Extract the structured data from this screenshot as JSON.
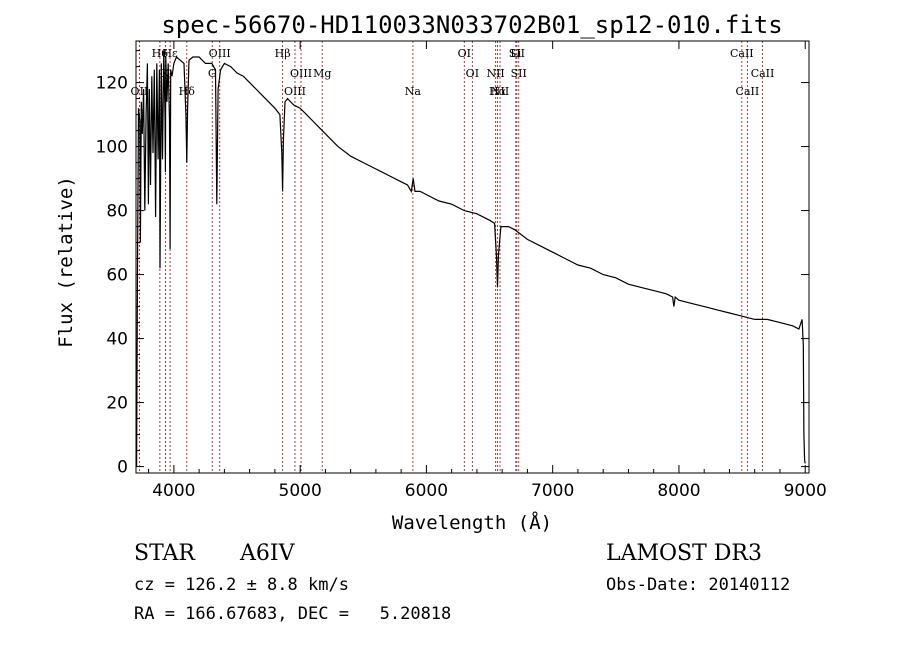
{
  "chart_data": {
    "type": "line",
    "title": "spec-56670-HD110033N033702B01_sp12-010.fits",
    "xlabel": "Wavelength (Å)",
    "ylabel": "Flux (relative)",
    "xlim": [
      3700,
      9030
    ],
    "ylim": [
      -2,
      133
    ],
    "xticks": [
      4000,
      5000,
      6000,
      7000,
      8000,
      9000
    ],
    "yticks": [
      0,
      20,
      40,
      60,
      80,
      100,
      120
    ],
    "xtick_labels": [
      "4000",
      "5000",
      "6000",
      "7000",
      "8000",
      "9000"
    ],
    "ytick_labels": [
      "0",
      "20",
      "40",
      "60",
      "80",
      "100",
      "120"
    ],
    "series": [
      {
        "name": "spectrum",
        "x": [
          3700,
          3705,
          3712,
          3720,
          3730,
          3735,
          3742,
          3750,
          3760,
          3770,
          3780,
          3790,
          3798,
          3805,
          3815,
          3825,
          3835,
          3845,
          3855,
          3865,
          3875,
          3885,
          3890,
          3900,
          3910,
          3920,
          3930,
          3933,
          3936,
          3945,
          3955,
          3965,
          3970,
          3975,
          3985,
          4000,
          4020,
          4050,
          4080,
          4095,
          4102,
          4109,
          4120,
          4150,
          4200,
          4250,
          4300,
          4330,
          4340,
          4350,
          4370,
          4400,
          4450,
          4500,
          4550,
          4600,
          4650,
          4700,
          4750,
          4800,
          4840,
          4855,
          4861,
          4867,
          4880,
          4900,
          4950,
          5000,
          5050,
          5100,
          5150,
          5200,
          5300,
          5400,
          5500,
          5600,
          5700,
          5800,
          5850,
          5880,
          5895,
          5910,
          5950,
          6000,
          6100,
          6200,
          6300,
          6400,
          6500,
          6540,
          6556,
          6563,
          6570,
          6590,
          6650,
          6700,
          6800,
          6900,
          7000,
          7100,
          7200,
          7300,
          7400,
          7500,
          7600,
          7700,
          7800,
          7900,
          7950,
          7960,
          7970,
          8000,
          8100,
          8200,
          8300,
          8400,
          8500,
          8600,
          8700,
          8800,
          8900,
          8950,
          8975,
          8985,
          8990,
          8995,
          9000
        ],
        "y": [
          3,
          0,
          62,
          112,
          108,
          70,
          114,
          104,
          118,
          80,
          110,
          126,
          82,
          118,
          88,
          122,
          98,
          124,
          78,
          126,
          96,
          124,
          62,
          126,
          96,
          130,
          110,
          92,
          128,
          114,
          126,
          108,
          68,
          124,
          122,
          126,
          128,
          127,
          126,
          110,
          95,
          112,
          127,
          128,
          128,
          126,
          126,
          124,
          82,
          118,
          124,
          126,
          125,
          123,
          122,
          120,
          118,
          116,
          114,
          112,
          110,
          98,
          86,
          102,
          114,
          115,
          113,
          112,
          110,
          108,
          106,
          104,
          100,
          97,
          95,
          93,
          91,
          89,
          88,
          86,
          90,
          86,
          86,
          85,
          83,
          82,
          80,
          79,
          77,
          76,
          65,
          56,
          66,
          75,
          75,
          74,
          71,
          69,
          67,
          65,
          63,
          62,
          60,
          59,
          57,
          56,
          55,
          54,
          53,
          50,
          53,
          52,
          51,
          50,
          49,
          48,
          47,
          46,
          46,
          45,
          44,
          43,
          46,
          38,
          10,
          2,
          1
        ]
      }
    ],
    "annotations": [
      {
        "label": "H6",
        "wavelength": 3889
      },
      {
        "label": "K",
        "wavelength": 3934
      },
      {
        "label": "Hδ",
        "wavelength": 4102
      },
      {
        "label": "OIII",
        "wavelength": 4363
      },
      {
        "label": "OIII",
        "wavelength": 5007
      },
      {
        "label": "OII",
        "wavelength": 3727
      },
      {
        "label": "Hε",
        "wavelength": 3970
      },
      {
        "label": "G",
        "wavelength": 4304
      },
      {
        "label": "OIII",
        "wavelength": 4959
      },
      {
        "label": "Hβ",
        "wavelength": 4861
      },
      {
        "label": "Mg",
        "wavelength": 5175
      },
      {
        "label": "Na",
        "wavelength": 5893
      },
      {
        "label": "OI",
        "wavelength": 6300
      },
      {
        "label": "OI",
        "wavelength": 6364
      },
      {
        "label": "Hα",
        "wavelength": 6563
      },
      {
        "label": "SII",
        "wavelength": 6716
      },
      {
        "label": "NII",
        "wavelength": 6548
      },
      {
        "label": "NII",
        "wavelength": 6583
      },
      {
        "label": "Li",
        "wavelength": 6708
      },
      {
        "label": "SII",
        "wavelength": 6731
      },
      {
        "label": "CaII",
        "wavelength": 8542
      },
      {
        "label": "CaII",
        "wavelength": 8498
      },
      {
        "label": "CaII",
        "wavelength": 8662
      }
    ]
  },
  "info": {
    "object_class": "STAR",
    "subclass": "A6IV",
    "survey": "LAMOST DR3",
    "cz": "cz = 126.2 ± 8.8 km/s",
    "obs_date": "Obs-Date: 20140112",
    "coords": "RA = 166.67683, DEC =   5.20818"
  }
}
